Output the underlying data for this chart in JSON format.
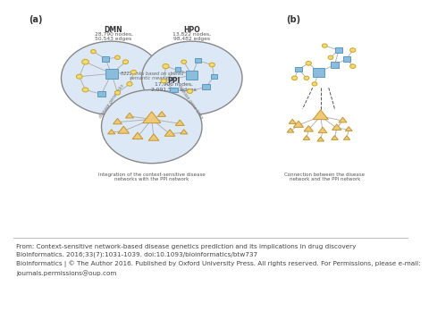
{
  "bg_color": "#ffffff",
  "panel_bg": "#dce8f5",
  "circle_edge": "#888888",
  "node_square_fc": "#8bbcdc",
  "node_square_ec": "#5a9abf",
  "node_circle_fc": "#f5d87a",
  "node_circle_ec": "#c8a820",
  "node_triangle_fc": "#f0c878",
  "node_triangle_ec": "#c09830",
  "label_a": "(a)",
  "label_b": "(b)",
  "dmn_title": "DMN",
  "dmn_info": "28,790 nodes,\n50,543 edges",
  "hpo_title": "HPO",
  "hpo_info": "13,822 nodes,\n98,482 edges",
  "ppi_title": "PPI",
  "ppi_info": "17,906 nodes,\n2,091,567 edges",
  "link_text": "8222 links based on shared\nsemantic meanings",
  "dmn_ppi_text": "disease gene links",
  "hpo_ppi_text": "disease gene links",
  "caption1": "Integration of the context-sensitive disease\nnetworks with the PPI network",
  "caption2": "Connection between the disease\nnetwork and the PPI network",
  "footer_line1": "From: Context-sensitive network-based disease genetics prediction and its implications in drug discovery",
  "footer_line2": "Bioinformatics. 2016;33(7):1031-1039. doi:10.1093/bioinformatics/btw737",
  "footer_line3": "Bioinformatics | © The Author 2016. Published by Oxford University Press. All rights reserved. For Permissions, please e-mail:",
  "footer_line4": "journals.permissions@oup.com",
  "footer_color": "#444444",
  "separator_color": "#bbbbbb"
}
